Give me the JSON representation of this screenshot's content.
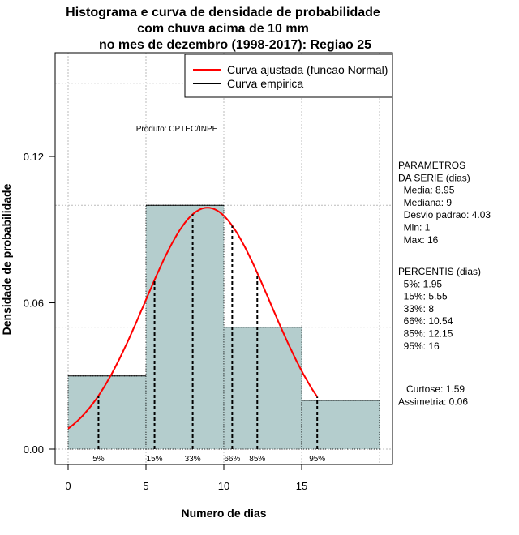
{
  "chart_data": {
    "type": "bar",
    "title": [
      "Histograma e curva de densidade de probabilidade",
      "com chuva acima de 10 mm",
      "no mes de dezembro (1998-2017): Regiao 25"
    ],
    "xlabel": "Numero de dias",
    "ylabel": "Densidade de probabilidade",
    "xlim": [
      0,
      20
    ],
    "ylim": [
      0,
      0.15
    ],
    "xticks": [
      0,
      5,
      10,
      15
    ],
    "xtick_labels": [
      "0",
      "5",
      "10",
      "15"
    ],
    "yticks": [
      0,
      0.06,
      0.12
    ],
    "ytick_labels": [
      "0.00",
      "0.06",
      "0.12"
    ],
    "bins": [
      {
        "from": 0,
        "to": 5,
        "density": 0.03
      },
      {
        "from": 5,
        "to": 10,
        "density": 0.1
      },
      {
        "from": 10,
        "to": 15,
        "density": 0.05
      },
      {
        "from": 15,
        "to": 20,
        "density": 0.02
      }
    ],
    "normal_curve": {
      "mean": 8.95,
      "sd": 4.03,
      "from": 0,
      "to": 16
    },
    "percentile_lines": [
      {
        "label": "5%",
        "x": 1.95
      },
      {
        "label": "15%",
        "x": 5.55
      },
      {
        "label": "33%",
        "x": 8
      },
      {
        "label": "66%",
        "x": 10.54
      },
      {
        "label": "85%",
        "x": 12.15
      },
      {
        "label": "95%",
        "x": 16
      }
    ],
    "legend": [
      {
        "label": "Curva ajustada (funcao Normal)",
        "color": "#ff0000"
      },
      {
        "label": "Curva empirica",
        "color": "#000000"
      }
    ],
    "legend_position": "top-right",
    "annotation": "Produto: CPTEC/INPE",
    "bar_color": "#b4cdcd",
    "grid": true
  },
  "side_panel": {
    "params": [
      "PARAMETROS",
      "DA SERIE (dias)",
      "  Media: 8.95",
      "  Mediana: 9",
      "  Desvio padrao: 4.03",
      "  Min: 1",
      "  Max: 16"
    ],
    "percentis": [
      "PERCENTIS (dias)",
      "  5%: 1.95",
      "  15%: 5.55",
      "  33%: 8",
      "  66%: 10.54",
      "  85%: 12.15",
      "  95%: 16"
    ],
    "stats": [
      "   Curtose: 1.59",
      "Assimetria: 0.06"
    ]
  }
}
